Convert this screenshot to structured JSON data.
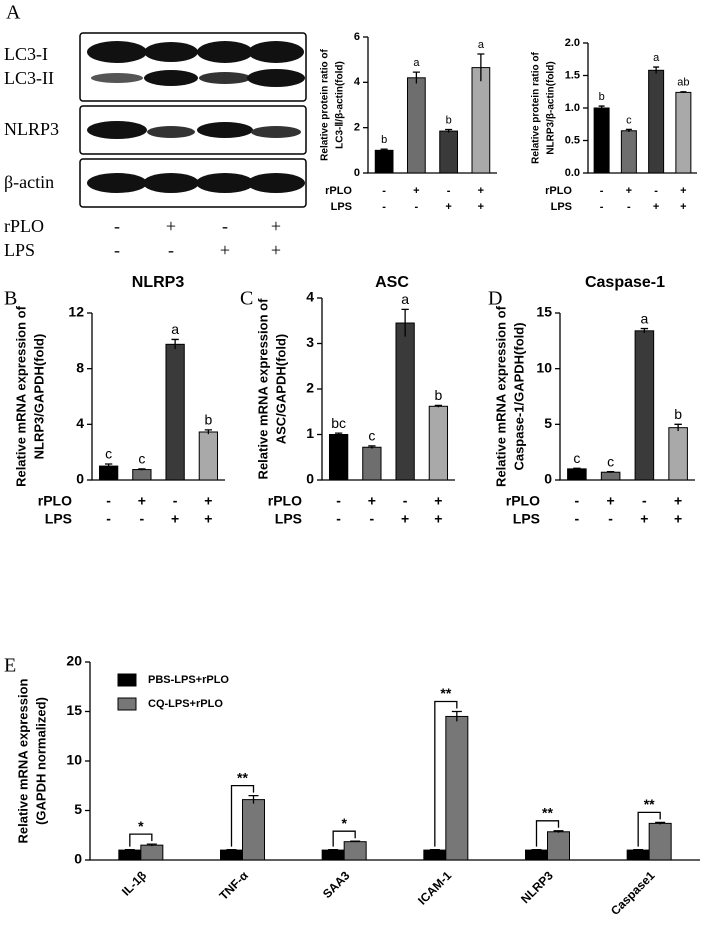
{
  "blot": {
    "panel": "A",
    "bands": [
      "LC3-I",
      "LC3-II",
      "NLRP3",
      "β-actin"
    ],
    "rows": [
      {
        "name": "rPLO",
        "signs": [
          "-",
          "+",
          "-",
          "+"
        ]
      },
      {
        "name": "LPS",
        "signs": [
          "-",
          "-",
          "+",
          "+"
        ]
      }
    ]
  },
  "chart_data": [
    {
      "type": "bar",
      "ylabel": [
        "Relative protein ratio of",
        "LC3-Ⅱ/β-actin(fold)"
      ],
      "values": [
        1.0,
        4.2,
        1.85,
        4.65
      ],
      "errors": [
        0.05,
        0.25,
        0.07,
        0.6
      ],
      "annotations": [
        "b",
        "a",
        "b",
        "a"
      ],
      "colors": [
        "#000000",
        "#6e6e6e",
        "#3a3a3a",
        "#a9a9a9"
      ],
      "ylim": [
        0,
        6
      ],
      "yticks": [
        0,
        2,
        4,
        6
      ],
      "treatments": [
        {
          "name": "rPLO",
          "signs": [
            "-",
            "+",
            "-",
            "+"
          ]
        },
        {
          "name": "LPS",
          "signs": [
            "-",
            "-",
            "+",
            "+"
          ]
        }
      ]
    },
    {
      "type": "bar",
      "ylabel": [
        "Relative protein ratio of",
        "NLRP3/β-actin(fold)"
      ],
      "values": [
        1.0,
        0.65,
        1.58,
        1.24
      ],
      "errors": [
        0.03,
        0.02,
        0.05,
        0.01
      ],
      "annotations": [
        "b",
        "c",
        "a",
        "ab"
      ],
      "colors": [
        "#000000",
        "#6e6e6e",
        "#3a3a3a",
        "#a9a9a9"
      ],
      "ylim": [
        0,
        2
      ],
      "yticks": [
        {
          "value": 0,
          "label": "0.0"
        },
        {
          "value": 0.5,
          "label": "0.5"
        },
        {
          "value": 1,
          "label": "1.0"
        },
        {
          "value": 1.5,
          "label": "1.5"
        },
        {
          "value": 2,
          "label": "2.0"
        }
      ],
      "treatments": [
        {
          "name": "rPLO",
          "signs": [
            "-",
            "+",
            "-",
            "+"
          ]
        },
        {
          "name": "LPS",
          "signs": [
            "-",
            "-",
            "+",
            "+"
          ]
        }
      ]
    },
    {
      "type": "bar",
      "panel": "B",
      "title": "NLRP3",
      "ylabel": [
        "Relative mRNA expression of",
        "NLRP3/GAPDH(fold)"
      ],
      "values": [
        1.0,
        0.75,
        9.75,
        3.45
      ],
      "errors": [
        0.15,
        0.05,
        0.35,
        0.15
      ],
      "annotations": [
        "c",
        "c",
        "a",
        "b"
      ],
      "colors": [
        "#000000",
        "#6e6e6e",
        "#3a3a3a",
        "#a9a9a9"
      ],
      "ylim": [
        0,
        12
      ],
      "yticks": [
        0,
        4,
        8,
        12
      ],
      "treatments": [
        {
          "name": "rPLO",
          "signs": [
            "-",
            "+",
            "-",
            "+"
          ]
        },
        {
          "name": "LPS",
          "signs": [
            "-",
            "-",
            "+",
            "+"
          ]
        }
      ]
    },
    {
      "type": "bar",
      "panel": "C",
      "title": "ASC",
      "ylabel": [
        "Relative mRNA expression of",
        "ASC/GAPDH(fold)"
      ],
      "values": [
        1.0,
        0.72,
        3.45,
        1.62
      ],
      "errors": [
        0.03,
        0.03,
        0.3,
        0.02
      ],
      "annotations": [
        "bc",
        "c",
        "a",
        "b"
      ],
      "colors": [
        "#000000",
        "#6e6e6e",
        "#3a3a3a",
        "#a9a9a9"
      ],
      "ylim": [
        0,
        4
      ],
      "yticks": [
        0,
        1,
        2,
        3,
        4
      ],
      "treatments": [
        {
          "name": "rPLO",
          "signs": [
            "-",
            "+",
            "-",
            "+"
          ]
        },
        {
          "name": "LPS",
          "signs": [
            "-",
            "-",
            "+",
            "+"
          ]
        }
      ]
    },
    {
      "type": "bar",
      "panel": "D",
      "title": "Caspase-1",
      "ylabel": [
        "Relative mRNA expression of",
        "Caspase-1/GAPDH(fold)"
      ],
      "values": [
        1.0,
        0.7,
        13.4,
        4.7
      ],
      "errors": [
        0.05,
        0.05,
        0.2,
        0.3
      ],
      "annotations": [
        "c",
        "c",
        "a",
        "b"
      ],
      "colors": [
        "#000000",
        "#6e6e6e",
        "#3a3a3a",
        "#a9a9a9"
      ],
      "ylim": [
        0,
        15
      ],
      "yticks": [
        0,
        5,
        10,
        15
      ],
      "treatments": [
        {
          "name": "rPLO",
          "signs": [
            "-",
            "+",
            "-",
            "+"
          ]
        },
        {
          "name": "LPS",
          "signs": [
            "-",
            "-",
            "+",
            "+"
          ]
        }
      ]
    },
    {
      "type": "grouped_bar",
      "panel": "E",
      "ylabel": [
        "Relative mRNA expression",
        "(GAPDH normalized)"
      ],
      "categories": [
        "IL-1β",
        "TNF-α",
        "SAA3",
        "ICAM-1",
        "NLRP3",
        "Caspase1"
      ],
      "series": [
        {
          "name": "PBS-LPS+rPLO",
          "color": "#000000",
          "values": [
            1.0,
            1.0,
            1.0,
            1.0,
            1.0,
            1.0
          ],
          "errors": [
            0.05,
            0.05,
            0.05,
            0.05,
            0.05,
            0.05
          ]
        },
        {
          "name": "CQ-LPS+rPLO",
          "color": "#777777",
          "values": [
            1.5,
            6.1,
            1.85,
            14.5,
            2.85,
            3.7
          ],
          "errors": [
            0.1,
            0.4,
            0.05,
            0.5,
            0.1,
            0.1
          ]
        }
      ],
      "significance": [
        "*",
        "**",
        "*",
        "**",
        "**",
        "**"
      ],
      "ylim": [
        0,
        20
      ],
      "yticks": [
        0,
        5,
        10,
        15,
        20
      ],
      "legend": "top-left"
    }
  ]
}
